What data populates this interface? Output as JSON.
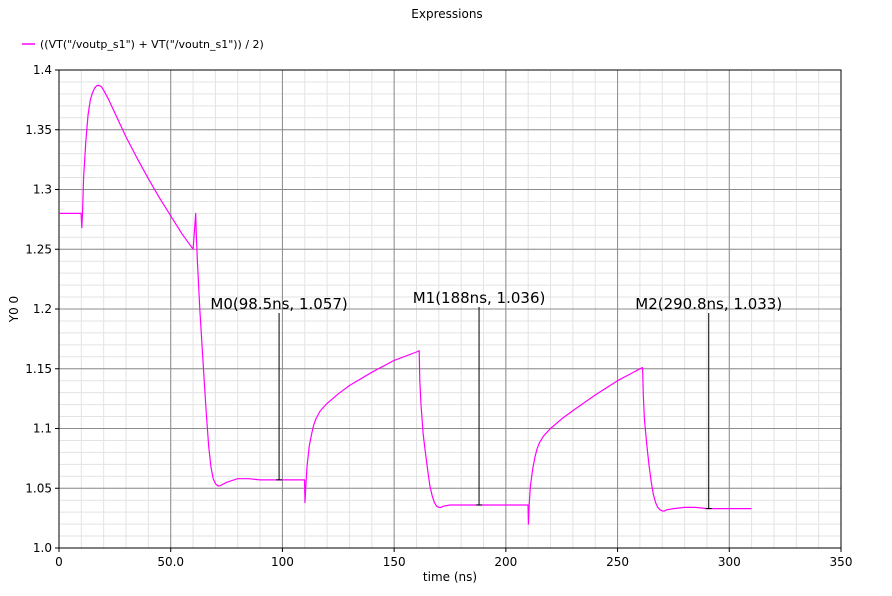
{
  "chart_data": {
    "type": "line",
    "title": "Expressions",
    "xlabel": "time (ns)",
    "ylabel": "Y0 0",
    "xlim": [
      0,
      350
    ],
    "ylim": [
      1.0,
      1.4
    ],
    "xticks": [
      0,
      50,
      100,
      150,
      200,
      250,
      300,
      350
    ],
    "xtick_labels": [
      "0",
      "50.0",
      "100",
      "150",
      "200",
      "250",
      "300",
      "350"
    ],
    "yticks": [
      1.0,
      1.05,
      1.1,
      1.15,
      1.2,
      1.25,
      1.3,
      1.35,
      1.4
    ],
    "ytick_labels": [
      "1.0",
      "1.05",
      "1.1",
      "1.15",
      "1.2",
      "1.25",
      "1.3",
      "1.35",
      "1.4"
    ],
    "grid": true,
    "minor_grid": true,
    "legend_position": "top-left",
    "series": [
      {
        "name": "((VT(\"/voutp_s1\") + VT(\"/voutn_s1\")) / 2)",
        "color": "#ff00ff",
        "x": [
          0,
          9.9,
          10.2,
          10.5,
          11,
          12,
          13,
          14,
          15,
          16,
          17,
          18,
          19,
          20,
          22,
          25,
          30,
          35,
          40,
          45,
          50,
          55,
          60,
          61.2,
          61.5,
          62,
          63,
          64,
          65,
          66,
          67,
          68,
          69,
          70,
          71,
          72,
          75,
          80,
          85,
          90,
          95,
          100,
          109.9,
          110.1,
          110.4,
          111,
          112,
          113,
          114,
          115,
          117,
          120,
          125,
          130,
          140,
          150,
          160,
          161.2,
          161.5,
          162,
          163,
          164,
          165,
          166,
          167,
          168,
          169,
          170,
          171,
          172,
          175,
          180,
          185,
          190,
          200,
          209.9,
          210.1,
          210.4,
          211,
          212,
          213,
          214,
          215,
          217,
          220,
          225,
          230,
          240,
          250,
          260,
          261.2,
          261.5,
          262,
          263,
          264,
          265,
          266,
          267,
          268,
          269,
          270,
          271,
          272,
          275,
          280,
          285,
          290,
          300,
          310
        ],
        "y": [
          1.28,
          1.28,
          1.268,
          1.28,
          1.31,
          1.34,
          1.362,
          1.375,
          1.381,
          1.385,
          1.387,
          1.387,
          1.386,
          1.383,
          1.376,
          1.364,
          1.344,
          1.326,
          1.309,
          1.293,
          1.278,
          1.263,
          1.25,
          1.28,
          1.26,
          1.238,
          1.2,
          1.17,
          1.14,
          1.11,
          1.085,
          1.068,
          1.058,
          1.054,
          1.052,
          1.052,
          1.055,
          1.058,
          1.058,
          1.057,
          1.057,
          1.057,
          1.057,
          1.038,
          1.05,
          1.068,
          1.085,
          1.095,
          1.103,
          1.108,
          1.115,
          1.121,
          1.129,
          1.136,
          1.147,
          1.157,
          1.164,
          1.165,
          1.14,
          1.12,
          1.095,
          1.08,
          1.065,
          1.052,
          1.044,
          1.038,
          1.035,
          1.034,
          1.034,
          1.035,
          1.036,
          1.036,
          1.036,
          1.036,
          1.036,
          1.036,
          1.02,
          1.035,
          1.052,
          1.066,
          1.076,
          1.083,
          1.088,
          1.094,
          1.1,
          1.108,
          1.115,
          1.128,
          1.14,
          1.15,
          1.151,
          1.128,
          1.108,
          1.088,
          1.07,
          1.056,
          1.045,
          1.038,
          1.034,
          1.032,
          1.031,
          1.031,
          1.032,
          1.033,
          1.034,
          1.034,
          1.033,
          1.033,
          1.033
        ]
      }
    ],
    "markers": [
      {
        "label": "M0(98.5ns, 1.057)",
        "x": 98.5,
        "y": 1.057,
        "label_y": 1.2
      },
      {
        "label": "M1(188ns, 1.036)",
        "x": 188,
        "y": 1.036,
        "label_y": 1.205
      },
      {
        "label": "M2(290.8ns, 1.033)",
        "x": 290.8,
        "y": 1.033,
        "label_y": 1.2
      }
    ]
  }
}
